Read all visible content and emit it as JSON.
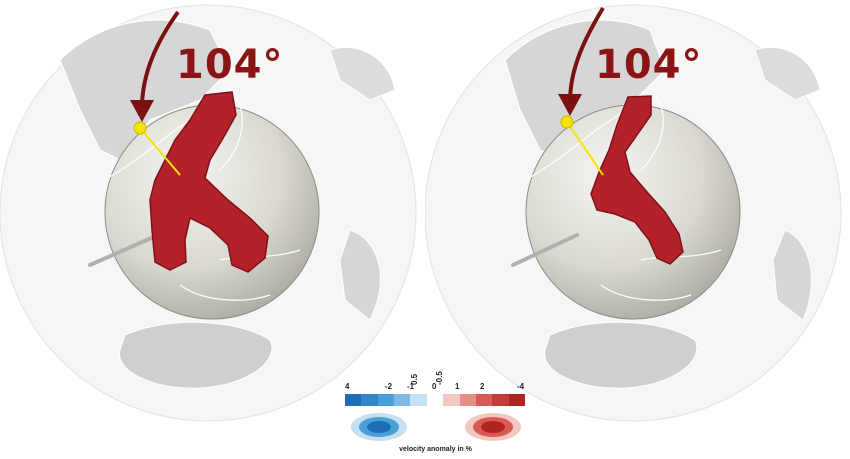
{
  "panels": [
    {
      "angle_label": "104°"
    },
    {
      "angle_label": "104°"
    }
  ],
  "legend": {
    "ticks": [
      "4",
      "-2",
      "-1",
      "0.5",
      "0",
      "-0.5",
      "1",
      "2",
      "-4"
    ],
    "caption": "velocity anomaly in %",
    "colors": [
      "#1f6fb8",
      "#2f86c8",
      "#4aa0d6",
      "#7fbbe4",
      "#c6dff1",
      "#ffffff",
      "#f4c7c0",
      "#e58f85",
      "#d75a55",
      "#c53a3a",
      "#b02424"
    ]
  },
  "colors": {
    "anomaly": "#b3222b",
    "arrow": "#7a1010",
    "marker": "#f2e600",
    "globe": "#d9d8d0"
  }
}
